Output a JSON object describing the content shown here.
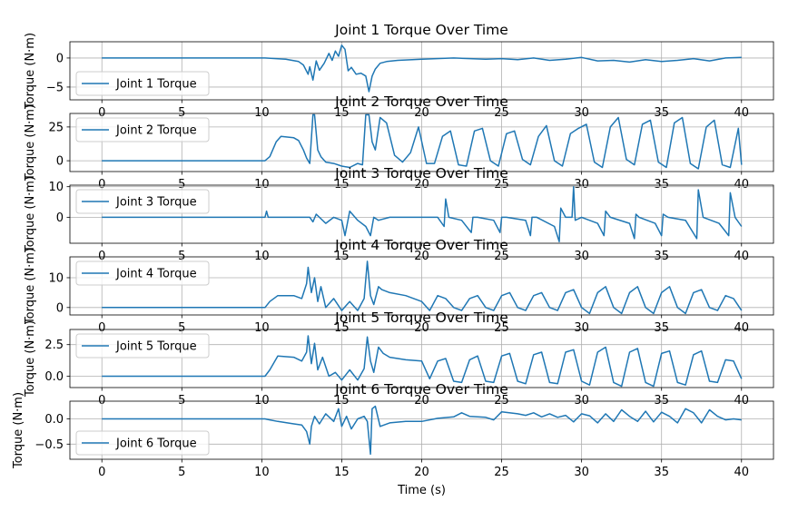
{
  "chart_data": [
    {
      "type": "line",
      "title": "Joint 1 Torque Over Time",
      "ylabel": "Torque (N·m)",
      "xlabel": "",
      "legend": "Joint 1 Torque",
      "legend_loc": "lower-left",
      "xlim": [
        -2,
        42
      ],
      "ylim": [
        -7.2,
        2.8
      ],
      "yticks": [
        -5,
        0
      ],
      "ytick_labels": [
        "−5",
        "0"
      ],
      "xticks": [
        0,
        5,
        10,
        15,
        20,
        25,
        30,
        35,
        40
      ],
      "xtick_labels": [
        "0",
        "5",
        "10",
        "15",
        "20",
        "25",
        "30",
        "35",
        "40"
      ],
      "grid": true,
      "x": [
        0,
        10.2,
        11.5,
        12.3,
        12.6,
        12.9,
        13.0,
        13.2,
        13.4,
        13.6,
        13.9,
        14.2,
        14.4,
        14.6,
        14.8,
        15.0,
        15.2,
        15.4,
        15.6,
        15.9,
        16.2,
        16.5,
        16.7,
        16.9,
        17.1,
        17.4,
        17.8,
        18.5,
        20,
        22,
        24,
        25,
        26,
        27,
        28,
        29,
        30,
        31,
        32,
        33,
        34,
        35,
        36,
        37,
        38,
        39,
        40
      ],
      "y": [
        0,
        0,
        -0.2,
        -0.6,
        -1.2,
        -2.8,
        -1.5,
        -3.8,
        -0.5,
        -2.1,
        -0.9,
        0.8,
        -0.4,
        1.2,
        0.3,
        2.2,
        1.5,
        -2.2,
        -1.6,
        -2.8,
        -2.6,
        -3.1,
        -5.8,
        -3.1,
        -1.9,
        -0.9,
        -0.6,
        -0.4,
        -0.2,
        0,
        -0.2,
        -0.1,
        -0.3,
        0,
        -0.4,
        -0.2,
        0.1,
        -0.5,
        -0.4,
        -0.7,
        -0.3,
        -0.6,
        -0.4,
        -0.1,
        -0.5,
        0,
        0.1
      ]
    },
    {
      "type": "line",
      "title": "Joint 2 Torque Over Time",
      "ylabel": "Torque (N·m)",
      "xlabel": "",
      "legend": "Joint 2 Torque",
      "legend_loc": "upper-left",
      "xlim": [
        -2,
        42
      ],
      "ylim": [
        -8,
        35
      ],
      "yticks": [
        0,
        25
      ],
      "ytick_labels": [
        "0",
        "25"
      ],
      "xticks": [
        0,
        5,
        10,
        15,
        20,
        25,
        30,
        35,
        40
      ],
      "xtick_labels": [
        "0",
        "5",
        "10",
        "15",
        "20",
        "25",
        "30",
        "35",
        "40"
      ],
      "grid": true,
      "x": [
        0,
        10.2,
        10.5,
        10.9,
        11.2,
        12.0,
        12.3,
        12.6,
        12.8,
        13.0,
        13.2,
        13.3,
        13.5,
        13.7,
        14.0,
        14.5,
        15.0,
        15.5,
        16.0,
        16.3,
        16.5,
        16.7,
        16.9,
        17.1,
        17.4,
        17.8,
        18.3,
        18.8,
        19.3,
        19.8,
        20.3,
        20.8,
        21.3,
        21.8,
        22.3,
        22.8,
        23.3,
        23.8,
        24.3,
        24.8,
        25.3,
        25.8,
        26.3,
        26.8,
        27.3,
        27.8,
        28.3,
        28.8,
        29.3,
        29.8,
        30.3,
        30.8,
        31.3,
        31.8,
        32.3,
        32.8,
        33.3,
        33.8,
        34.3,
        34.8,
        35.3,
        35.8,
        36.3,
        36.8,
        37.3,
        37.8,
        38.3,
        38.8,
        39.3,
        39.8,
        40.0
      ],
      "y": [
        0,
        0,
        3,
        14,
        18,
        17,
        15,
        8,
        2,
        -2,
        34,
        34,
        8,
        3,
        -1,
        -2,
        -4,
        -5,
        -2,
        -3,
        34,
        34,
        14,
        8,
        32,
        28,
        4,
        -1,
        6,
        25,
        -2,
        -2,
        18,
        22,
        -3,
        -4,
        22,
        24,
        0,
        -4,
        20,
        22,
        1,
        -3,
        18,
        26,
        0,
        -4,
        20,
        24,
        27,
        -1,
        -5,
        25,
        32,
        1,
        -3,
        27,
        30,
        -1,
        -5,
        28,
        32,
        -2,
        -6,
        25,
        30,
        -3,
        -5,
        24,
        -3
      ]
    },
    {
      "type": "line",
      "title": "Joint 3 Torque Over Time",
      "ylabel": "Torque (N·m)",
      "xlabel": "",
      "legend": "Joint 3 Torque",
      "legend_loc": "upper-left",
      "xlim": [
        -2,
        42
      ],
      "ylim": [
        -8.5,
        10.5
      ],
      "yticks": [
        0,
        10
      ],
      "ytick_labels": [
        "0",
        "10"
      ],
      "xticks": [
        0,
        5,
        10,
        15,
        20,
        25,
        30,
        35,
        40
      ],
      "xtick_labels": [
        "0",
        "5",
        "10",
        "15",
        "20",
        "25",
        "30",
        "35",
        "40"
      ],
      "grid": true,
      "x": [
        0,
        10.2,
        10.3,
        10.4,
        11,
        13.0,
        13.2,
        13.4,
        14.0,
        14.5,
        15.0,
        15.2,
        15.5,
        16.0,
        16.5,
        16.8,
        17.0,
        17.3,
        18.0,
        20.0,
        21.0,
        21.4,
        21.5,
        21.7,
        22.5,
        23.1,
        23.2,
        23.5,
        24.5,
        24.9,
        25.0,
        25.3,
        26.5,
        26.8,
        26.9,
        27.2,
        28.3,
        28.6,
        28.7,
        29.0,
        29.4,
        29.5,
        29.6,
        30.0,
        31.0,
        31.4,
        31.5,
        31.8,
        33.0,
        33.3,
        33.4,
        33.6,
        34.6,
        35.0,
        35.1,
        35.4,
        36.5,
        37.2,
        37.3,
        37.6,
        38.6,
        39.2,
        39.3,
        39.6,
        40.0
      ],
      "y": [
        0,
        0,
        2,
        0,
        0,
        0,
        -1.5,
        1,
        -2,
        0,
        -1,
        -6,
        2,
        -1,
        -3,
        -6,
        0,
        -1,
        0,
        0,
        0,
        -3,
        6,
        0,
        -1,
        -5,
        0,
        0,
        -1,
        -5,
        0,
        0,
        -1,
        -6,
        0,
        0,
        -3,
        -8,
        3,
        0,
        0,
        10,
        -1,
        0,
        -2,
        -6,
        2,
        0,
        -2,
        -7,
        1,
        0,
        -2,
        -6,
        1,
        0,
        -1,
        -7,
        9,
        0,
        -2,
        -6,
        8,
        0,
        -3
      ]
    },
    {
      "type": "line",
      "title": "Joint 4 Torque Over Time",
      "ylabel": "Torque (N·m)",
      "xlabel": "",
      "legend": "Joint 4 Torque",
      "legend_loc": "upper-left",
      "xlim": [
        -2,
        42
      ],
      "ylim": [
        -2.5,
        17
      ],
      "yticks": [
        0,
        10
      ],
      "ytick_labels": [
        "0",
        "10"
      ],
      "xticks": [
        0,
        5,
        10,
        15,
        20,
        25,
        30,
        35,
        40
      ],
      "xtick_labels": [
        "0",
        "5",
        "10",
        "15",
        "20",
        "25",
        "30",
        "35",
        "40"
      ],
      "grid": true,
      "x": [
        0,
        10.2,
        10.5,
        11,
        12,
        12.5,
        12.8,
        12.9,
        13.1,
        13.3,
        13.5,
        13.7,
        14.0,
        14.5,
        15.0,
        15.5,
        16.0,
        16.4,
        16.6,
        16.8,
        17.0,
        17.3,
        17.5,
        18.0,
        19.0,
        20.0,
        20.5,
        21.0,
        21.5,
        22.0,
        22.5,
        23.0,
        23.5,
        24.0,
        24.5,
        25.0,
        25.5,
        26.0,
        26.5,
        27.0,
        27.5,
        28.0,
        28.5,
        29.0,
        29.5,
        30.0,
        30.5,
        31.0,
        31.5,
        32.0,
        32.5,
        33.0,
        33.5,
        34.0,
        34.5,
        35.0,
        35.5,
        36.0,
        36.5,
        37.0,
        37.5,
        38.0,
        38.5,
        39.0,
        39.5,
        40.0
      ],
      "y": [
        0,
        0,
        2,
        4,
        4,
        3,
        8,
        13.5,
        5,
        10,
        2,
        7,
        0,
        3,
        -1,
        2,
        -1,
        3,
        15.5,
        4,
        1,
        7,
        6,
        5,
        4,
        2,
        -1,
        4,
        3,
        0,
        -1,
        3,
        4,
        0,
        -1,
        4,
        5,
        0,
        -1,
        4,
        5,
        0,
        -1,
        5,
        6,
        0,
        -2,
        5,
        7,
        0,
        -2,
        5,
        7,
        0,
        -2,
        5,
        7,
        0,
        -2,
        5,
        6,
        0,
        -1,
        4,
        3,
        -1
      ]
    },
    {
      "type": "line",
      "title": "Joint 5 Torque Over Time",
      "ylabel": "Torque (N·m)",
      "xlabel": "",
      "legend": "Joint 5 Torque",
      "legend_loc": "upper-left",
      "xlim": [
        -2,
        42
      ],
      "ylim": [
        -0.9,
        3.7
      ],
      "yticks": [
        0,
        2.5
      ],
      "ytick_labels": [
        "0.0",
        "2.5"
      ],
      "xticks": [
        0,
        5,
        10,
        15,
        20,
        25,
        30,
        35,
        40
      ],
      "xtick_labels": [
        "0",
        "5",
        "10",
        "15",
        "20",
        "25",
        "30",
        "35",
        "40"
      ],
      "grid": true,
      "x": [
        0,
        10.2,
        10.5,
        11,
        12,
        12.5,
        12.8,
        12.9,
        13.1,
        13.3,
        13.5,
        13.8,
        14.2,
        14.6,
        15.0,
        15.5,
        16.0,
        16.4,
        16.6,
        16.8,
        17.0,
        17.3,
        17.6,
        18.0,
        19.0,
        20.0,
        20.5,
        21.0,
        21.5,
        22.0,
        22.5,
        23.0,
        23.5,
        24.0,
        24.5,
        25.0,
        25.5,
        26.0,
        26.5,
        27.0,
        27.5,
        28.0,
        28.5,
        29.0,
        29.5,
        30.0,
        30.5,
        31.0,
        31.5,
        32.0,
        32.5,
        33.0,
        33.5,
        34.0,
        34.5,
        35.0,
        35.5,
        36.0,
        36.5,
        37.0,
        37.5,
        38.0,
        38.5,
        39.0,
        39.5,
        40.0
      ],
      "y": [
        0,
        0,
        0.5,
        1.6,
        1.5,
        1.2,
        1.9,
        3.2,
        1,
        2.6,
        0.5,
        1.5,
        0,
        0.3,
        -0.3,
        0.5,
        -0.3,
        0.6,
        3.1,
        1.2,
        0.3,
        2.3,
        1.8,
        1.5,
        1.3,
        1.2,
        -0.2,
        1.2,
        1.4,
        -0.4,
        -0.5,
        1.3,
        1.6,
        -0.4,
        -0.5,
        1.6,
        1.8,
        -0.4,
        -0.6,
        1.7,
        1.9,
        -0.5,
        -0.6,
        1.9,
        2.1,
        -0.4,
        -0.7,
        1.9,
        2.3,
        -0.5,
        -0.8,
        1.9,
        2.2,
        -0.5,
        -0.8,
        1.8,
        2.0,
        -0.5,
        -0.7,
        1.7,
        2.0,
        -0.4,
        -0.5,
        1.3,
        1.2,
        -0.2
      ]
    },
    {
      "type": "line",
      "title": "Joint 6 Torque Over Time",
      "ylabel": "Torque (N·m)",
      "xlabel": "Time (s)",
      "legend": "Joint 6 Torque",
      "legend_loc": "lower-left",
      "xlim": [
        -2,
        42
      ],
      "ylim": [
        -0.8,
        0.35
      ],
      "yticks": [
        -0.5,
        0
      ],
      "ytick_labels": [
        "−0.5",
        "0.0"
      ],
      "xticks": [
        0,
        5,
        10,
        15,
        20,
        25,
        30,
        35,
        40
      ],
      "xtick_labels": [
        "0",
        "5",
        "10",
        "15",
        "20",
        "25",
        "30",
        "35",
        "40"
      ],
      "grid": true,
      "x": [
        0,
        10.2,
        10.5,
        11,
        12,
        12.5,
        12.8,
        13.0,
        13.1,
        13.3,
        13.6,
        14.0,
        14.5,
        14.8,
        15.0,
        15.3,
        15.6,
        16.0,
        16.4,
        16.6,
        16.8,
        16.9,
        17.1,
        17.4,
        18.0,
        19.0,
        20.0,
        21.0,
        22.0,
        22.5,
        23.0,
        24.0,
        24.5,
        25.0,
        26.0,
        26.5,
        27.0,
        27.5,
        28.0,
        28.5,
        29.0,
        29.5,
        30.0,
        30.5,
        31.0,
        31.5,
        32.0,
        32.5,
        33.0,
        33.5,
        34.0,
        34.5,
        35.0,
        35.5,
        36.0,
        36.5,
        37.0,
        37.5,
        38.0,
        38.5,
        39.0,
        39.5,
        40.0
      ],
      "y": [
        0,
        0,
        -0.02,
        -0.05,
        -0.1,
        -0.12,
        -0.25,
        -0.5,
        -0.15,
        0.05,
        -0.1,
        0.1,
        -0.05,
        0.2,
        -0.15,
        0.05,
        -0.2,
        0,
        0.05,
        -0.05,
        -0.7,
        0.2,
        0.25,
        -0.15,
        -0.08,
        -0.05,
        -0.05,
        0.01,
        0.04,
        0.12,
        0.05,
        0.03,
        -0.02,
        0.14,
        0.1,
        0.07,
        0.12,
        0.04,
        0.1,
        0.03,
        0.07,
        -0.06,
        0.1,
        0.06,
        -0.08,
        0.1,
        -0.05,
        0.18,
        0.05,
        -0.05,
        0.15,
        -0.06,
        0.13,
        0.05,
        -0.08,
        0.2,
        0.12,
        -0.08,
        0.18,
        0.05,
        -0.02,
        0,
        -0.02
      ]
    }
  ]
}
